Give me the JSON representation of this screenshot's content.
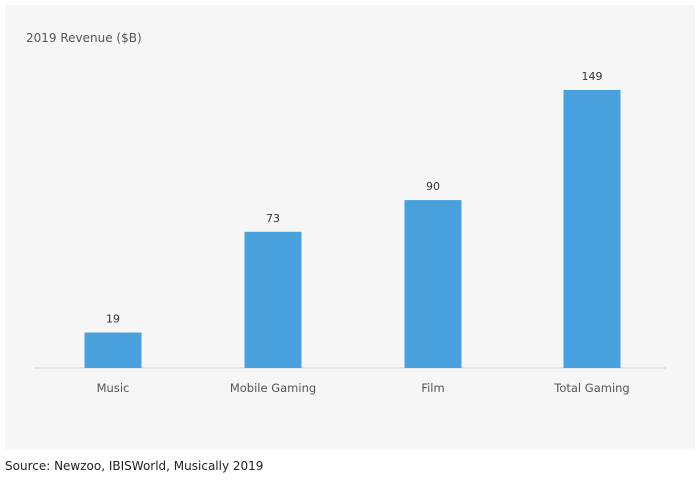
{
  "chart_data": {
    "type": "bar",
    "categories": [
      "Music",
      "Mobile Gaming",
      "Film",
      "Total Gaming"
    ],
    "values": [
      19,
      73,
      90,
      149
    ],
    "data_labels": [
      "19",
      "73",
      "90",
      "149"
    ],
    "title": "",
    "xlabel": "",
    "ylabel": "2019 Revenue ($B)",
    "ylim": [
      0,
      160
    ],
    "grid": false,
    "bar_color": "#48a0dc"
  },
  "source": "Source: Newzoo, IBISWorld, Musically 2019"
}
